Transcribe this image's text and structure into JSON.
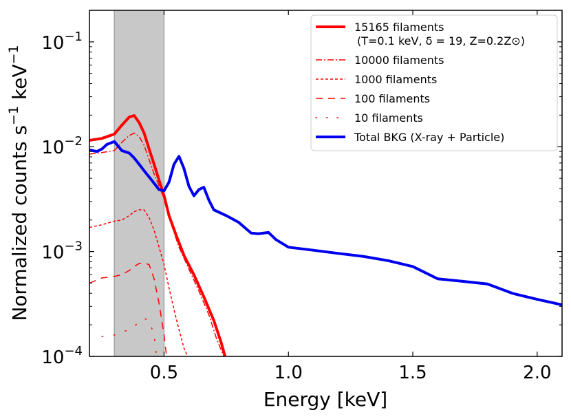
{
  "chart_data": {
    "type": "line",
    "title": "",
    "xlabel": "Energy [keV]",
    "ylabel": {
      "base": "Normalized  counts s",
      "exp1": "−1",
      "mid": " keV",
      "exp2": "−1"
    },
    "xscale": "linear",
    "yscale": "log",
    "xlim": [
      0.2,
      2.1
    ],
    "ylim": [
      0.0001,
      0.2
    ],
    "xticks": [
      {
        "value": 0.5,
        "label": "0.5"
      },
      {
        "value": 1.0,
        "label": "1.0"
      },
      {
        "value": 1.5,
        "label": "1.5"
      },
      {
        "value": 2.0,
        "label": "2.0"
      }
    ],
    "yticks": [
      {
        "value": 0.0001,
        "base": "10",
        "exp": "−4"
      },
      {
        "value": 0.001,
        "base": "10",
        "exp": "−3"
      },
      {
        "value": 0.01,
        "base": "10",
        "exp": "−2"
      },
      {
        "value": 0.1,
        "base": "10",
        "exp": "−1"
      }
    ],
    "shaded_band": {
      "x0": 0.3,
      "x1": 0.5,
      "color": "#c8c8c8"
    },
    "legend_position": "top-right",
    "series": [
      {
        "name": "15165 filaments",
        "name_sub": "(T=0.1 keV, δ = 19, Z=0.2Z⊙)",
        "color": "#ff0000",
        "style": "solid",
        "width": 4,
        "x": [
          0.2,
          0.25,
          0.3,
          0.33,
          0.36,
          0.38,
          0.4,
          0.42,
          0.44,
          0.46,
          0.48,
          0.5,
          0.52,
          0.55,
          0.58,
          0.62,
          0.66,
          0.7,
          0.73,
          0.745
        ],
        "y": [
          0.0115,
          0.012,
          0.0132,
          0.016,
          0.0192,
          0.0198,
          0.017,
          0.0135,
          0.0095,
          0.0068,
          0.0048,
          0.0034,
          0.0022,
          0.0014,
          0.00092,
          0.0006,
          0.00037,
          0.00022,
          0.000135,
          0.0001
        ]
      },
      {
        "name": "10000 filaments",
        "color": "#ff0000",
        "style": "dashdot",
        "width": 1.5,
        "x": [
          0.2,
          0.25,
          0.3,
          0.33,
          0.36,
          0.38,
          0.4,
          0.42,
          0.44,
          0.46,
          0.48,
          0.5,
          0.53,
          0.56,
          0.6,
          0.64,
          0.68,
          0.71,
          0.74
        ],
        "y": [
          0.0085,
          0.0088,
          0.0092,
          0.011,
          0.0128,
          0.0135,
          0.0125,
          0.0103,
          0.0075,
          0.0055,
          0.0042,
          0.0032,
          0.0018,
          0.0011,
          0.00068,
          0.00042,
          0.00025,
          0.00015,
          0.0001
        ]
      },
      {
        "name": "1000 filaments",
        "color": "#ff0000",
        "style": "dashed",
        "width": 1.5,
        "x": [
          0.2,
          0.25,
          0.3,
          0.33,
          0.36,
          0.38,
          0.4,
          0.42,
          0.44,
          0.46,
          0.48,
          0.5,
          0.52,
          0.54,
          0.56,
          0.58,
          0.595
        ],
        "y": [
          0.0017,
          0.0018,
          0.00195,
          0.002,
          0.0022,
          0.0024,
          0.0025,
          0.0025,
          0.0021,
          0.0016,
          0.0011,
          0.00075,
          0.00045,
          0.00028,
          0.00018,
          0.00012,
          0.0001
        ]
      },
      {
        "name": "100 filaments",
        "color": "#ff0000",
        "style": "longdash",
        "width": 1.5,
        "x": [
          0.2,
          0.25,
          0.3,
          0.33,
          0.36,
          0.38,
          0.4,
          0.42,
          0.44,
          0.46,
          0.48,
          0.5,
          0.51
        ],
        "y": [
          0.0005,
          0.00056,
          0.00058,
          0.0006,
          0.00066,
          0.00072,
          0.00077,
          0.00078,
          0.00075,
          0.00055,
          0.00032,
          0.00016,
          0.0001
        ]
      },
      {
        "name": "10 filaments",
        "color": "#ff0000",
        "style": "dotted",
        "width": 1.5,
        "x": [
          0.25,
          0.3,
          0.33,
          0.36,
          0.38,
          0.4,
          0.42,
          0.44,
          0.46,
          0.47
        ],
        "y": [
          0.000155,
          0.00016,
          0.00017,
          0.00018,
          0.000195,
          0.00021,
          0.00023,
          0.00022,
          0.00016,
          0.0001
        ]
      },
      {
        "name": "Total BKG (X-ray + Particle)",
        "color": "#0000ee",
        "style": "solid",
        "width": 4,
        "x": [
          0.2,
          0.23,
          0.25,
          0.27,
          0.3,
          0.33,
          0.36,
          0.38,
          0.4,
          0.42,
          0.45,
          0.48,
          0.5,
          0.52,
          0.54,
          0.56,
          0.58,
          0.6,
          0.62,
          0.64,
          0.66,
          0.68,
          0.7,
          0.75,
          0.8,
          0.85,
          0.88,
          0.92,
          0.95,
          1.0,
          1.1,
          1.2,
          1.3,
          1.4,
          1.5,
          1.6,
          1.7,
          1.8,
          1.9,
          2.0,
          2.1
        ],
        "y": [
          0.0093,
          0.009,
          0.0095,
          0.0105,
          0.0112,
          0.0092,
          0.0087,
          0.0078,
          0.0068,
          0.0059,
          0.0048,
          0.0039,
          0.0038,
          0.0046,
          0.0068,
          0.0081,
          0.0062,
          0.0042,
          0.0034,
          0.0039,
          0.0041,
          0.0031,
          0.0025,
          0.0022,
          0.0019,
          0.0015,
          0.00148,
          0.00152,
          0.0013,
          0.0011,
          0.00103,
          0.00096,
          0.0009,
          0.00082,
          0.00072,
          0.00055,
          0.00052,
          0.00049,
          0.0004,
          0.00035,
          0.00031
        ]
      }
    ]
  }
}
